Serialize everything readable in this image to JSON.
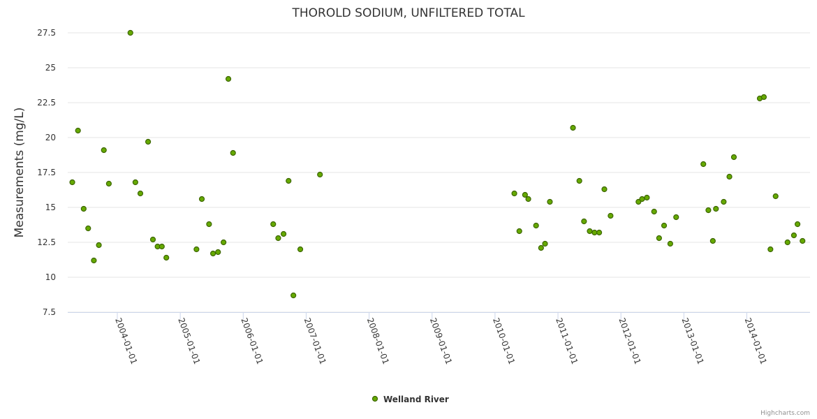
{
  "chart_data": {
    "type": "scatter",
    "title": "THOROLD SODIUM, UNFILTERED TOTAL",
    "xlabel": "",
    "ylabel": "Measurements (mg/L)",
    "ylim": [
      7.5,
      27.5
    ],
    "yticks": [
      "7.5",
      "10",
      "12.5",
      "15",
      "17.5",
      "20",
      "22.5",
      "25",
      "27.5"
    ],
    "xticks": [
      "2004-01-01",
      "2005-01-01",
      "2006-01-01",
      "2007-01-01",
      "2008-01-01",
      "2009-01-01",
      "2010-01-01",
      "2011-01-01",
      "2012-01-01",
      "2013-01-01",
      "2014-01-01"
    ],
    "grid": true,
    "legend_position": "bottom-center",
    "series": [
      {
        "name": "Welland River",
        "color": "#66aa00",
        "points": [
          [
            "2003-04-15",
            16.8
          ],
          [
            "2003-05-18",
            20.5
          ],
          [
            "2003-06-20",
            14.9
          ],
          [
            "2003-07-16",
            13.5
          ],
          [
            "2003-08-18",
            11.2
          ],
          [
            "2003-09-16",
            12.3
          ],
          [
            "2003-10-15",
            19.1
          ],
          [
            "2003-11-13",
            16.7
          ],
          [
            "2004-03-17",
            27.5
          ],
          [
            "2004-04-15",
            16.8
          ],
          [
            "2004-05-14",
            16.0
          ],
          [
            "2004-06-28",
            19.7
          ],
          [
            "2004-07-26",
            12.7
          ],
          [
            "2004-08-22",
            12.2
          ],
          [
            "2004-09-16",
            12.2
          ],
          [
            "2004-10-12",
            11.4
          ],
          [
            "2005-04-05",
            12.0
          ],
          [
            "2005-05-06",
            15.6
          ],
          [
            "2005-06-17",
            13.8
          ],
          [
            "2005-07-10",
            11.7
          ],
          [
            "2005-08-08",
            11.8
          ],
          [
            "2005-09-09",
            12.5
          ],
          [
            "2005-10-07",
            24.2
          ],
          [
            "2005-11-03",
            18.9
          ],
          [
            "2006-06-24",
            13.8
          ],
          [
            "2006-07-23",
            12.8
          ],
          [
            "2006-08-23",
            13.1
          ],
          [
            "2006-09-21",
            16.9
          ],
          [
            "2006-10-19",
            8.7
          ],
          [
            "2006-11-28",
            12.0
          ],
          [
            "2007-03-22",
            17.35
          ],
          [
            "2010-04-23",
            16.0
          ],
          [
            "2010-05-22",
            13.3
          ],
          [
            "2010-06-24",
            15.9
          ],
          [
            "2010-07-13",
            15.6
          ],
          [
            "2010-08-27",
            13.7
          ],
          [
            "2010-09-25",
            12.1
          ],
          [
            "2010-10-18",
            12.4
          ],
          [
            "2010-11-15",
            15.4
          ],
          [
            "2011-03-29",
            20.7
          ],
          [
            "2011-05-05",
            16.9
          ],
          [
            "2011-06-01",
            14.0
          ],
          [
            "2011-07-04",
            13.3
          ],
          [
            "2011-08-01",
            13.2
          ],
          [
            "2011-08-28",
            13.2
          ],
          [
            "2011-09-27",
            16.3
          ],
          [
            "2011-11-02",
            14.4
          ],
          [
            "2012-04-12",
            15.4
          ],
          [
            "2012-05-03",
            15.6
          ],
          [
            "2012-05-31",
            15.7
          ],
          [
            "2012-07-12",
            14.7
          ],
          [
            "2012-08-10",
            12.8
          ],
          [
            "2012-09-08",
            13.7
          ],
          [
            "2012-10-14",
            12.4
          ],
          [
            "2012-11-17",
            14.3
          ],
          [
            "2013-04-24",
            18.1
          ],
          [
            "2013-05-23",
            14.8
          ],
          [
            "2013-06-18",
            12.6
          ],
          [
            "2013-07-06",
            14.9
          ],
          [
            "2013-08-20",
            15.4
          ],
          [
            "2013-09-22",
            17.2
          ],
          [
            "2013-10-18",
            18.6
          ],
          [
            "2014-03-17",
            22.8
          ],
          [
            "2014-04-10",
            22.9
          ],
          [
            "2014-05-18",
            12.0
          ],
          [
            "2014-06-17",
            15.8
          ],
          [
            "2014-08-25",
            12.5
          ],
          [
            "2014-10-01",
            13.0
          ],
          [
            "2014-10-22",
            13.8
          ],
          [
            "2014-11-20",
            12.6
          ]
        ]
      }
    ]
  },
  "credits": "Highcharts.com"
}
